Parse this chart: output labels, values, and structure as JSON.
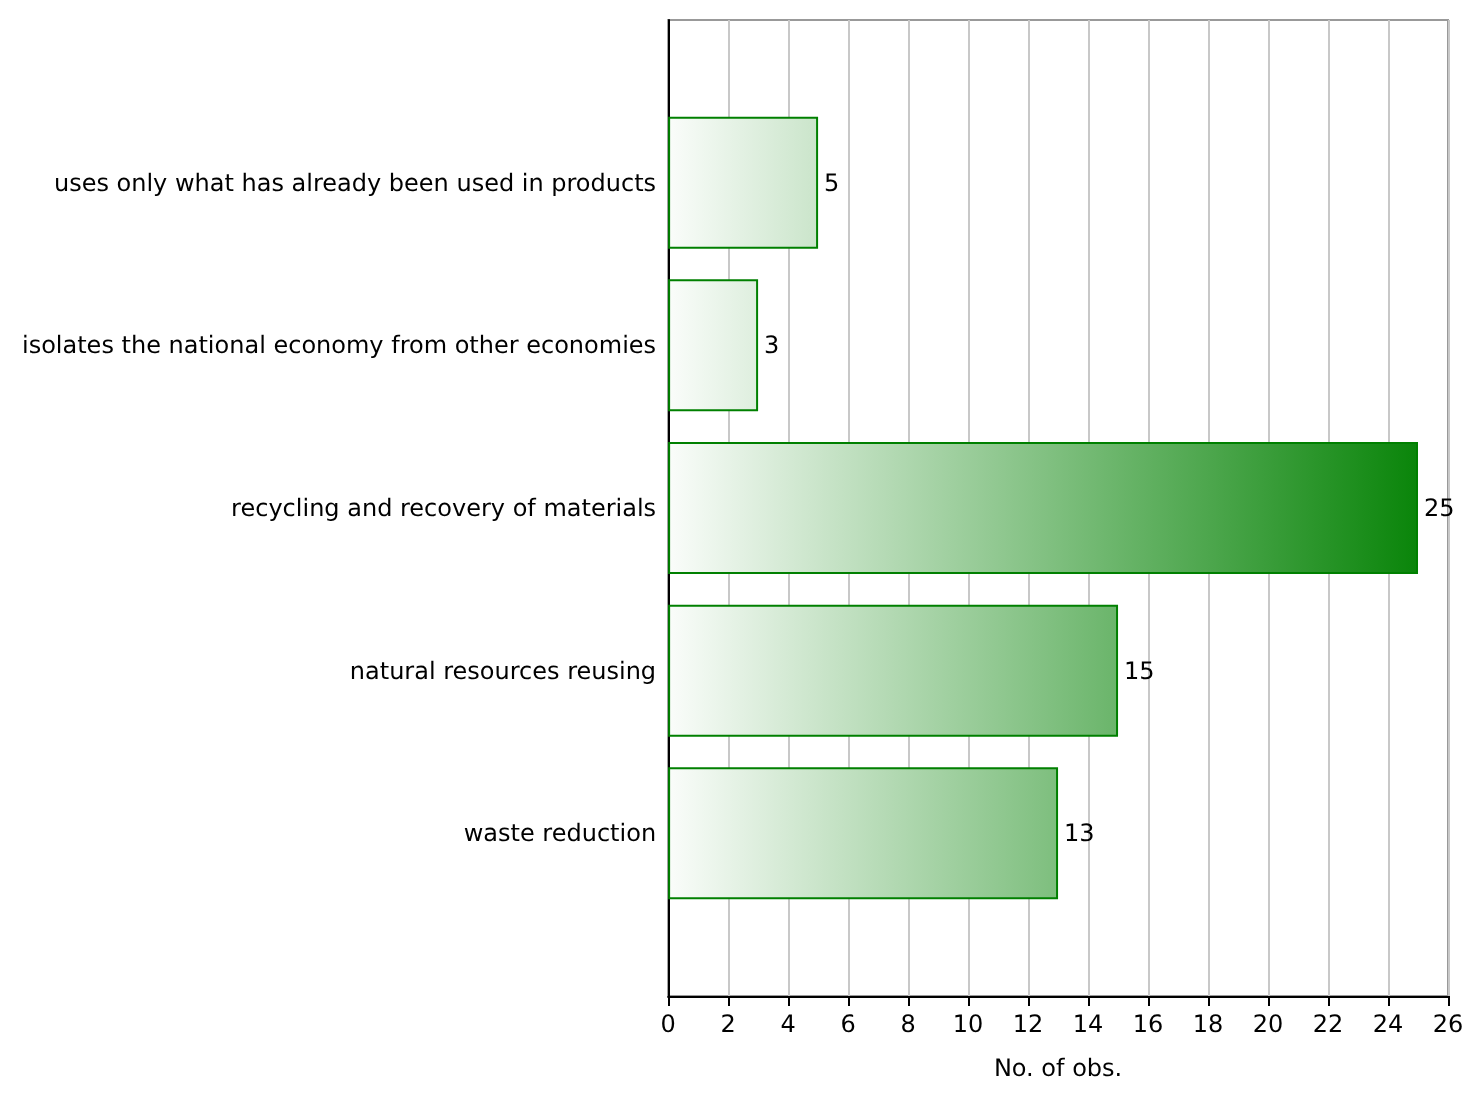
{
  "chart_data": {
    "type": "bar",
    "orientation": "horizontal",
    "xlabel": "No. of obs.",
    "categories": [
      "uses only what has already been used in products",
      "isolates the national economy from other economies",
      "recycling and recovery of materials",
      "natural resources reusing",
      "waste reduction"
    ],
    "values": [
      5,
      3,
      25,
      15,
      13
    ],
    "color": "#008000",
    "xlim": [
      0,
      26
    ],
    "xticks": [
      0,
      2,
      4,
      6,
      8,
      10,
      12,
      14,
      16,
      18,
      20,
      22,
      24,
      26
    ],
    "grid": "x",
    "data_labels": true
  }
}
